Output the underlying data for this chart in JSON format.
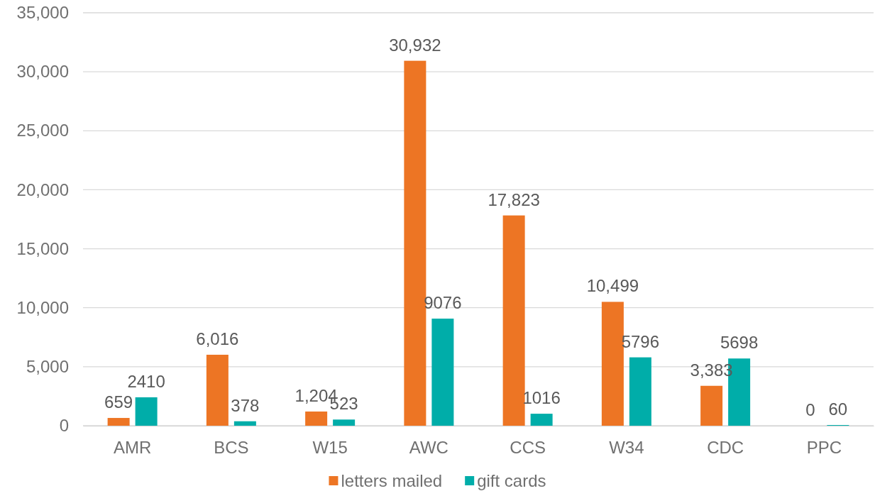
{
  "chart_data": {
    "type": "bar",
    "categories": [
      "AMR",
      "BCS",
      "W15",
      "AWC",
      "CCS",
      "W34",
      "CDC",
      "PPC"
    ],
    "series": [
      {
        "name": "letters mailed",
        "color": "#ed7524",
        "values": [
          659,
          6016,
          1204,
          30932,
          17823,
          10499,
          3383,
          0
        ],
        "value_labels": [
          "659",
          "6,016",
          "1,204",
          "30,932",
          "17,823",
          "10,499",
          "3,383",
          "0"
        ]
      },
      {
        "name": "gift cards",
        "color": "#00ada9",
        "values": [
          2410,
          378,
          523,
          9076,
          1016,
          5796,
          5698,
          60
        ],
        "value_labels": [
          "2410",
          "378",
          "523",
          "9076",
          "1016",
          "5796",
          "5698",
          "60"
        ]
      }
    ],
    "ylim": [
      0,
      35000
    ],
    "yticks": [
      {
        "value": 0,
        "label": "0"
      },
      {
        "value": 5000,
        "label": "5,000"
      },
      {
        "value": 10000,
        "label": "10,000"
      },
      {
        "value": 15000,
        "label": "15,000"
      },
      {
        "value": 20000,
        "label": "20,000"
      },
      {
        "value": 25000,
        "label": "25,000"
      },
      {
        "value": 30000,
        "label": "30,000"
      },
      {
        "value": 35000,
        "label": "35,000"
      }
    ],
    "grid": "y",
    "legend": "bottom"
  }
}
